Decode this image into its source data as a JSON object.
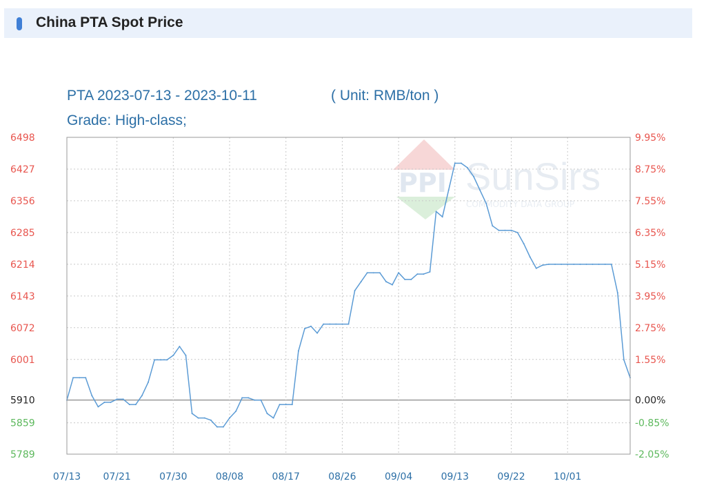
{
  "header": {
    "title": "China PTA Spot Price"
  },
  "watermark": {
    "logo_text": "PPI",
    "brand": "SunSirs",
    "tagline": "COMMODITY DATA GROUP"
  },
  "colors": {
    "header_bg": "#eaf1fb",
    "marker": "#3f7fd6",
    "subtitle": "#2c6fa6",
    "line": "#5b9bd5",
    "up": "#e8554e",
    "down": "#5cb85c",
    "neutral": "#222222",
    "grid": "#c8c8c8",
    "frame": "#9a9a9a"
  },
  "chart_data": {
    "type": "line",
    "title": "PTA 2023-07-13 - 2023-10-11",
    "unit": "( Unit: RMB/ton )",
    "subtitle": "Grade: High-class;",
    "base_price": 5910,
    "ylim": [
      5789,
      6498
    ],
    "y_ticks": [
      {
        "label": "6498",
        "value": 6498,
        "pct": "9.95%",
        "color": "up"
      },
      {
        "label": "6427",
        "value": 6427,
        "pct": "8.75%",
        "color": "up"
      },
      {
        "label": "6356",
        "value": 6356,
        "pct": "7.55%",
        "color": "up"
      },
      {
        "label": "6285",
        "value": 6285,
        "pct": "6.35%",
        "color": "up"
      },
      {
        "label": "6214",
        "value": 6214,
        "pct": "5.15%",
        "color": "up"
      },
      {
        "label": "6143",
        "value": 6143,
        "pct": "3.95%",
        "color": "up"
      },
      {
        "label": "6072",
        "value": 6072,
        "pct": "2.75%",
        "color": "up"
      },
      {
        "label": "6001",
        "value": 6001,
        "pct": "1.55%",
        "color": "up"
      },
      {
        "label": "5910",
        "value": 5910,
        "pct": "0.00%",
        "color": "neutral"
      },
      {
        "label": "5859",
        "value": 5859,
        "pct": "-0.85%",
        "color": "down"
      },
      {
        "label": "5789",
        "value": 5789,
        "pct": "-2.05%",
        "color": "down"
      }
    ],
    "x_ticks": [
      "07/13",
      "07/21",
      "07/30",
      "08/08",
      "08/17",
      "08/26",
      "09/04",
      "09/13",
      "09/22",
      "10/01"
    ],
    "x_tick_days": [
      0,
      8,
      17,
      26,
      35,
      44,
      53,
      62,
      71,
      80
    ],
    "x_end_day": 90,
    "grid": true,
    "series": [
      {
        "points": [
          [
            0,
            5910
          ],
          [
            1,
            5960
          ],
          [
            2,
            5960
          ],
          [
            3,
            5960
          ],
          [
            4,
            5920
          ],
          [
            5,
            5895
          ],
          [
            6,
            5905
          ],
          [
            7,
            5905
          ],
          [
            8,
            5912
          ],
          [
            9,
            5912
          ],
          [
            10,
            5900
          ],
          [
            11,
            5900
          ],
          [
            12,
            5920
          ],
          [
            13,
            5950
          ],
          [
            14,
            6000
          ],
          [
            15,
            6000
          ],
          [
            16,
            6000
          ],
          [
            17,
            6010
          ],
          [
            18,
            6030
          ],
          [
            19,
            6010
          ],
          [
            20,
            5880
          ],
          [
            21,
            5870
          ],
          [
            22,
            5870
          ],
          [
            23,
            5865
          ],
          [
            24,
            5850
          ],
          [
            25,
            5850
          ],
          [
            26,
            5870
          ],
          [
            27,
            5885
          ],
          [
            28,
            5915
          ],
          [
            29,
            5915
          ],
          [
            30,
            5910
          ],
          [
            31,
            5910
          ],
          [
            32,
            5880
          ],
          [
            33,
            5870
          ],
          [
            34,
            5900
          ],
          [
            35,
            5900
          ],
          [
            36,
            5900
          ],
          [
            37,
            6020
          ],
          [
            38,
            6070
          ],
          [
            39,
            6075
          ],
          [
            40,
            6060
          ],
          [
            41,
            6080
          ],
          [
            42,
            6080
          ],
          [
            43,
            6080
          ],
          [
            44,
            6080
          ],
          [
            45,
            6080
          ],
          [
            46,
            6155
          ],
          [
            47,
            6175
          ],
          [
            48,
            6195
          ],
          [
            49,
            6195
          ],
          [
            50,
            6195
          ],
          [
            51,
            6175
          ],
          [
            52,
            6168
          ],
          [
            53,
            6195
          ],
          [
            54,
            6180
          ],
          [
            55,
            6180
          ],
          [
            56,
            6192
          ],
          [
            57,
            6192
          ],
          [
            58,
            6197
          ],
          [
            59,
            6332
          ],
          [
            60,
            6320
          ],
          [
            61,
            6380
          ],
          [
            62,
            6440
          ],
          [
            63,
            6440
          ],
          [
            64,
            6430
          ],
          [
            65,
            6410
          ],
          [
            66,
            6380
          ],
          [
            67,
            6350
          ],
          [
            68,
            6300
          ],
          [
            69,
            6290
          ],
          [
            70,
            6290
          ],
          [
            71,
            6290
          ],
          [
            72,
            6285
          ],
          [
            73,
            6260
          ],
          [
            74,
            6230
          ],
          [
            75,
            6205
          ],
          [
            76,
            6212
          ],
          [
            77,
            6214
          ],
          [
            78,
            6214
          ],
          [
            79,
            6214
          ],
          [
            80,
            6214
          ],
          [
            81,
            6214
          ],
          [
            82,
            6214
          ],
          [
            83,
            6214
          ],
          [
            84,
            6214
          ],
          [
            85,
            6214
          ],
          [
            86,
            6214
          ],
          [
            87,
            6214
          ],
          [
            88,
            6150
          ],
          [
            89,
            6000
          ],
          [
            90,
            5960
          ]
        ]
      }
    ]
  }
}
